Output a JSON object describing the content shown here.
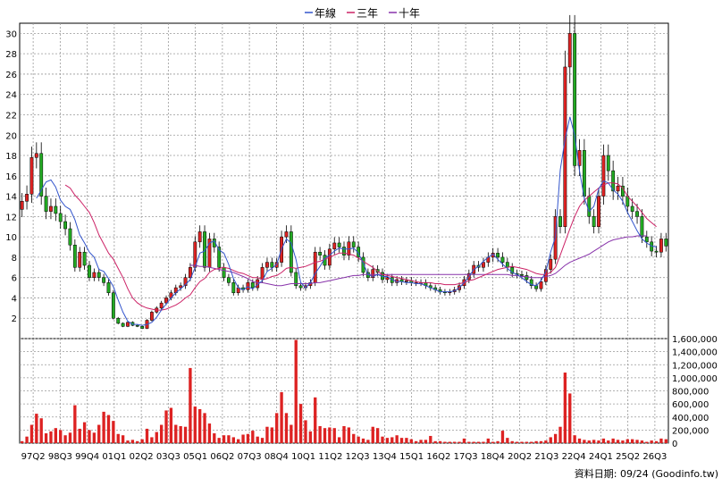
{
  "legend": [
    {
      "label": "年線",
      "color": "#3355cc"
    },
    {
      "label": "三年",
      "color": "#cc2266"
    },
    {
      "label": "十年",
      "color": "#8833aa"
    }
  ],
  "footer": "資料日期: 09/24  (Goodinfo.tw)",
  "colors": {
    "up": "#dd2222",
    "down": "#22aa22",
    "volume": "#dd2222",
    "grid": "#999999",
    "line": "#000000"
  },
  "chart_data": [
    {
      "type": "candlestick",
      "ylim": [
        0,
        31
      ],
      "y_ticks": [
        2,
        4,
        6,
        8,
        10,
        12,
        14,
        16,
        18,
        20,
        22,
        24,
        26,
        28,
        30
      ],
      "x_ticks": [
        "97Q2",
        "98Q3",
        "99Q4",
        "01Q1",
        "02Q2",
        "03Q3",
        "05Q1",
        "06Q2",
        "07Q3",
        "08Q4",
        "10Q1",
        "11Q2",
        "12Q3",
        "13Q4",
        "15Q1",
        "16Q2",
        "17Q3",
        "18Q4",
        "20Q2",
        "21Q3",
        "22Q4",
        "24Q1",
        "25Q2",
        "26Q3"
      ],
      "close": [
        13.5,
        14.2,
        17.8,
        18.2,
        14.0,
        12.5,
        13.0,
        12.3,
        11.5,
        10.8,
        9.2,
        7.0,
        8.5,
        7.2,
        6.0,
        6.5,
        6.0,
        5.5,
        4.5,
        2.0,
        1.5,
        1.2,
        1.6,
        1.3,
        1.2,
        1.0,
        1.8,
        2.6,
        3.0,
        3.5,
        4.0,
        4.5,
        5.0,
        5.2,
        6.0,
        7.0,
        9.5,
        10.5,
        7.0,
        9.8,
        9.0,
        7.0,
        6.0,
        5.5,
        4.5,
        5.0,
        4.8,
        5.5,
        5.0,
        5.8,
        7.0,
        7.5,
        7.0,
        7.5,
        10.0,
        10.5,
        6.5,
        5.2,
        5.0,
        5.2,
        5.5,
        8.5,
        8.2,
        7.2,
        8.8,
        9.4,
        9.0,
        8.2,
        9.5,
        9.0,
        8.0,
        6.5,
        6.0,
        6.8,
        6.5,
        5.8,
        6.0,
        5.5,
        5.8,
        5.6,
        5.7,
        5.5,
        5.5,
        5.5,
        5.2,
        5.0,
        4.8,
        4.6,
        4.5,
        4.6,
        4.8,
        5.2,
        5.8,
        6.4,
        7.2,
        7.0,
        7.5,
        8.0,
        8.4,
        8.0,
        7.5,
        7.0,
        6.4,
        6.3,
        6.2,
        5.8,
        5.2,
        4.9,
        5.6,
        6.8,
        7.8,
        12.0,
        11.0,
        26.7,
        30.0,
        17.0,
        18.5,
        14.0,
        12.0,
        11.0,
        14.0,
        18.0,
        16.5,
        14.5,
        15.0,
        14.0,
        13.0,
        12.5,
        12.0,
        10.0,
        9.5,
        8.6,
        8.5,
        9.8,
        9.1
      ],
      "sma_1y": [
        null,
        null,
        null,
        13.8,
        14.6,
        15.4,
        15.6,
        14.9,
        13.6,
        13.0,
        12.7,
        11.7,
        10.2,
        9.4,
        8.5,
        8.0,
        6.8,
        6.6,
        5.9,
        5.1,
        3.8,
        2.6,
        1.7,
        1.4,
        1.4,
        1.3,
        1.4,
        1.6,
        2.1,
        2.8,
        3.4,
        4.0,
        4.5,
        4.9,
        5.3,
        5.8,
        7.0,
        8.4,
        8.6,
        9.4,
        9.6,
        8.7,
        8.4,
        7.3,
        5.9,
        5.0,
        4.8,
        5.1,
        4.9,
        5.3,
        5.7,
        6.6,
        6.9,
        7.3,
        8.8,
        9.8,
        9.4,
        7.8,
        5.5,
        5.0,
        5.5,
        6.4,
        7.1,
        7.9,
        8.2,
        8.6,
        8.9,
        8.8,
        8.8,
        8.9,
        8.4,
        7.4,
        6.3,
        6.1,
        6.3,
        6.1,
        6.1,
        5.8,
        5.6,
        5.6,
        5.5,
        5.5,
        5.4,
        5.4,
        5.2,
        5.0,
        4.8,
        4.6,
        4.6,
        4.6,
        4.7,
        5.0,
        5.5,
        6.1,
        6.8,
        7.1,
        7.6,
        8.0,
        8.3,
        7.8,
        7.3,
        6.9,
        6.5,
        6.3,
        6.0,
        5.6,
        5.3,
        5.2,
        5.7,
        6.6,
        8.5,
        10.0,
        16.6,
        19.6,
        21.8,
        20.0,
        16.5,
        13.8,
        12.5,
        13.0,
        14.7,
        15.5,
        15.3,
        14.6,
        14.2,
        13.5,
        12.4,
        11.5,
        10.6,
        9.8,
        9.4,
        9.1,
        9.0
      ],
      "sma_3y": [
        null,
        null,
        null,
        null,
        null,
        null,
        null,
        null,
        null,
        15.1,
        14.8,
        14.1,
        13.6,
        13.0,
        12.4,
        11.4,
        10.2,
        9.3,
        8.4,
        7.8,
        6.9,
        6.0,
        4.9,
        4.0,
        3.5,
        3.2,
        3.0,
        2.9,
        2.8,
        2.8,
        2.9,
        3.1,
        3.3,
        3.6,
        4.0,
        4.3,
        5.0,
        5.6,
        5.9,
        6.5,
        6.8,
        6.9,
        7.0,
        6.9,
        6.7,
        6.5,
        6.4,
        6.2,
        6.0,
        6.0,
        5.8,
        5.9,
        6.1,
        6.2,
        6.5,
        6.9,
        7.0,
        6.9,
        7.0,
        7.1,
        7.3,
        7.5,
        7.6,
        7.8,
        8.0,
        8.2,
        8.4,
        8.4,
        8.3,
        8.2,
        7.9,
        7.6,
        7.3,
        7.0,
        6.6,
        6.3,
        6.2,
        6.1,
        6.0,
        5.9,
        5.8,
        5.7,
        5.6,
        5.5,
        5.5,
        5.5,
        5.4,
        5.4,
        5.3,
        5.3,
        5.3,
        5.4,
        5.5,
        5.7,
        5.8,
        6.0,
        6.2,
        6.4,
        6.6,
        6.8,
        6.9,
        7.0,
        7.1,
        7.0,
        6.9,
        6.8,
        6.6,
        6.4,
        6.3,
        6.3,
        6.5,
        7.0,
        8.2,
        9.5,
        10.8,
        12.0,
        13.0,
        13.6,
        14.0,
        14.4,
        14.8,
        15.1,
        15.3,
        15.3,
        15.2,
        14.8,
        14.0,
        13.5,
        13.0,
        12.4,
        11.8,
        11.4,
        11.0
      ],
      "sma_10y": [
        null,
        null,
        null,
        null,
        null,
        null,
        null,
        null,
        null,
        null,
        null,
        null,
        null,
        null,
        null,
        null,
        null,
        null,
        null,
        null,
        null,
        null,
        null,
        null,
        null,
        null,
        null,
        null,
        null,
        null,
        null,
        null,
        null,
        null,
        null,
        7.2,
        7.2,
        7.1,
        7.1,
        7.0,
        6.9,
        6.8,
        6.7,
        6.6,
        6.5,
        6.3,
        6.1,
        5.9,
        5.6,
        5.5,
        5.5,
        5.4,
        5.3,
        5.2,
        5.2,
        5.3,
        5.4,
        5.4,
        5.4,
        5.4,
        5.4,
        5.5,
        5.5,
        5.6,
        5.7,
        5.8,
        5.9,
        6.0,
        6.1,
        6.2,
        6.2,
        6.3,
        6.3,
        6.3,
        6.3,
        6.3,
        6.3,
        6.3,
        6.3,
        6.3,
        6.3,
        6.3,
        6.3,
        6.3,
        6.3,
        6.3,
        6.3,
        6.3,
        6.3,
        6.3,
        6.3,
        6.3,
        6.3,
        6.3,
        6.3,
        6.3,
        6.3,
        6.3,
        6.3,
        6.3,
        6.3,
        6.3,
        6.2,
        6.2,
        6.1,
        6.1,
        6.0,
        6.0,
        6.0,
        6.1,
        6.2,
        6.4,
        6.8,
        7.2,
        7.5,
        7.7,
        7.9,
        8.1,
        8.3,
        8.6,
        8.9,
        9.2,
        9.5,
        9.7,
        9.8,
        9.9,
        10.0,
        10.0,
        10.1,
        10.1,
        10.1
      ]
    },
    {
      "type": "bar",
      "ylim": [
        0,
        1600000
      ],
      "y_ticks": [
        "0",
        "200,000",
        "400,000",
        "600,000",
        "800,000",
        "1,000,000",
        "1,200,000",
        "1,400,000",
        "1,600,000"
      ],
      "values": [
        30000,
        100000,
        280000,
        450000,
        380000,
        150000,
        180000,
        230000,
        200000,
        120000,
        160000,
        580000,
        220000,
        320000,
        200000,
        160000,
        280000,
        480000,
        430000,
        340000,
        140000,
        120000,
        40000,
        50000,
        30000,
        60000,
        220000,
        90000,
        170000,
        280000,
        500000,
        540000,
        280000,
        260000,
        250000,
        1150000,
        560000,
        520000,
        460000,
        300000,
        150000,
        80000,
        120000,
        120000,
        90000,
        60000,
        130000,
        140000,
        190000,
        100000,
        80000,
        250000,
        240000,
        460000,
        780000,
        460000,
        280000,
        1580000,
        600000,
        350000,
        180000,
        700000,
        260000,
        230000,
        240000,
        230000,
        90000,
        260000,
        240000,
        140000,
        100000,
        70000,
        50000,
        250000,
        230000,
        100000,
        80000,
        90000,
        120000,
        80000,
        80000,
        60000,
        30000,
        50000,
        50000,
        110000,
        30000,
        30000,
        20000,
        20000,
        20000,
        20000,
        70000,
        20000,
        20000,
        20000,
        20000,
        70000,
        20000,
        30000,
        190000,
        80000,
        30000,
        20000,
        20000,
        20000,
        20000,
        30000,
        30000,
        40000,
        90000,
        140000,
        250000,
        1080000,
        760000,
        120000,
        70000,
        50000,
        40000,
        50000,
        40000,
        70000,
        40000,
        70000,
        50000,
        40000,
        60000,
        60000,
        50000,
        40000,
        20000,
        40000,
        30000,
        70000,
        60000
      ]
    }
  ]
}
